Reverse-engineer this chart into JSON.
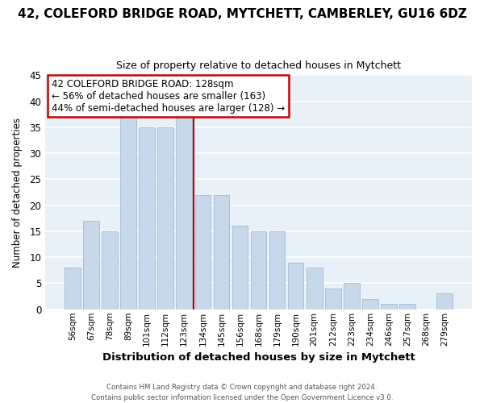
{
  "title": "42, COLEFORD BRIDGE ROAD, MYTCHETT, CAMBERLEY, GU16 6DZ",
  "subtitle": "Size of property relative to detached houses in Mytchett",
  "xlabel": "Distribution of detached houses by size in Mytchett",
  "ylabel": "Number of detached properties",
  "footer_line1": "Contains HM Land Registry data © Crown copyright and database right 2024.",
  "footer_line2": "Contains public sector information licensed under the Open Government Licence v3.0.",
  "bar_labels": [
    "56sqm",
    "67sqm",
    "78sqm",
    "89sqm",
    "101sqm",
    "112sqm",
    "123sqm",
    "134sqm",
    "145sqm",
    "156sqm",
    "168sqm",
    "179sqm",
    "190sqm",
    "201sqm",
    "212sqm",
    "223sqm",
    "234sqm",
    "246sqm",
    "257sqm",
    "268sqm",
    "279sqm"
  ],
  "bar_values": [
    8,
    17,
    15,
    37,
    35,
    35,
    37,
    22,
    22,
    16,
    15,
    15,
    9,
    8,
    4,
    5,
    2,
    1,
    1,
    0,
    3
  ],
  "bar_color": "#c8d8eb",
  "bar_edge_color": "#a8c0d8",
  "vline_x": 6.5,
  "vline_color": "#cc0000",
  "annotation_title": "42 COLEFORD BRIDGE ROAD: 128sqm",
  "annotation_line1": "← 56% of detached houses are smaller (163)",
  "annotation_line2": "44% of semi-detached houses are larger (128) →",
  "annotation_box_color": "#ffffff",
  "annotation_box_edge": "#cc0000",
  "ylim": [
    0,
    45
  ],
  "yticks": [
    0,
    5,
    10,
    15,
    20,
    25,
    30,
    35,
    40,
    45
  ],
  "plot_bg_color": "#e8f0f8",
  "fig_bg_color": "#ffffff",
  "grid_color": "#ffffff",
  "title_fontsize": 11,
  "subtitle_fontsize": 9
}
